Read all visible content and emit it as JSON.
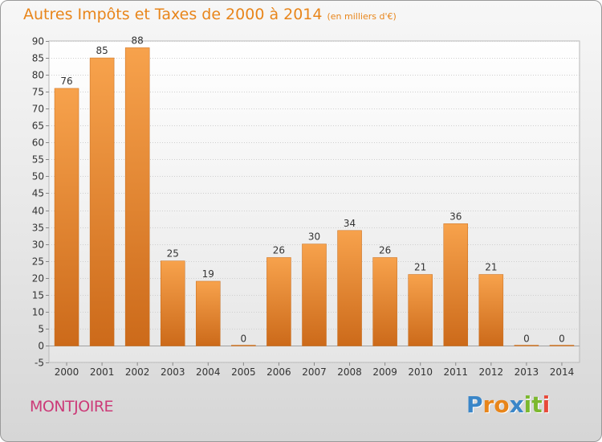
{
  "title": "Autres Impôts et Taxes de 2000 à 2014",
  "unit": "(en milliers d'€)",
  "commune": "MONTJOIRE",
  "logo": "Proxiti",
  "colors": {
    "bar_light": "#f7a24c",
    "bar_dark": "#cc6a1a",
    "title": "#e8851a",
    "commune": "#cc3a78"
  },
  "chart_data": {
    "type": "bar",
    "title": "Autres Impôts et Taxes de 2000 à 2014",
    "categories": [
      "2000",
      "2001",
      "2002",
      "2003",
      "2004",
      "2005",
      "2006",
      "2007",
      "2008",
      "2009",
      "2010",
      "2011",
      "2012",
      "2013",
      "2014"
    ],
    "values": [
      76,
      85,
      88,
      25,
      19,
      0,
      26,
      30,
      34,
      26,
      21,
      36,
      21,
      0,
      0
    ],
    "ylim": [
      -5,
      90
    ],
    "yticks": [
      -5,
      0,
      5,
      10,
      15,
      20,
      25,
      30,
      35,
      40,
      45,
      50,
      55,
      60,
      65,
      70,
      75,
      80,
      85,
      90
    ],
    "grid": true,
    "xlabel": "",
    "ylabel": ""
  }
}
